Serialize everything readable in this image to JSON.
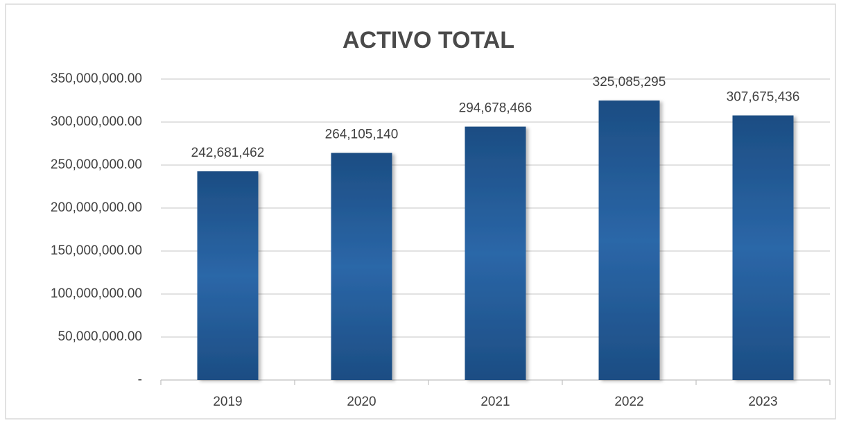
{
  "chart_data": {
    "type": "bar",
    "title": "ACTIVO TOTAL",
    "categories": [
      "2019",
      "2020",
      "2021",
      "2022",
      "2023"
    ],
    "values": [
      242681462,
      264105140,
      294678466,
      325085295,
      307675436
    ],
    "value_labels": [
      "242,681,462",
      "264,105,140",
      "294,678,466",
      "325,085,295",
      "307,675,436"
    ],
    "color": "#2b67a8",
    "ylim": [
      0,
      350000000
    ],
    "yticks": [
      {
        "value": 0,
        "label": "-"
      },
      {
        "value": 50000000,
        "label": "50,000,000.00"
      },
      {
        "value": 100000000,
        "label": "100,000,000.00"
      },
      {
        "value": 150000000,
        "label": "150,000,000.00"
      },
      {
        "value": 200000000,
        "label": "200,000,000.00"
      },
      {
        "value": 250000000,
        "label": "250,000,000.00"
      },
      {
        "value": 300000000,
        "label": "300,000,000.00"
      },
      {
        "value": 350000000,
        "label": "350,000,000.00"
      }
    ],
    "grid": true
  }
}
